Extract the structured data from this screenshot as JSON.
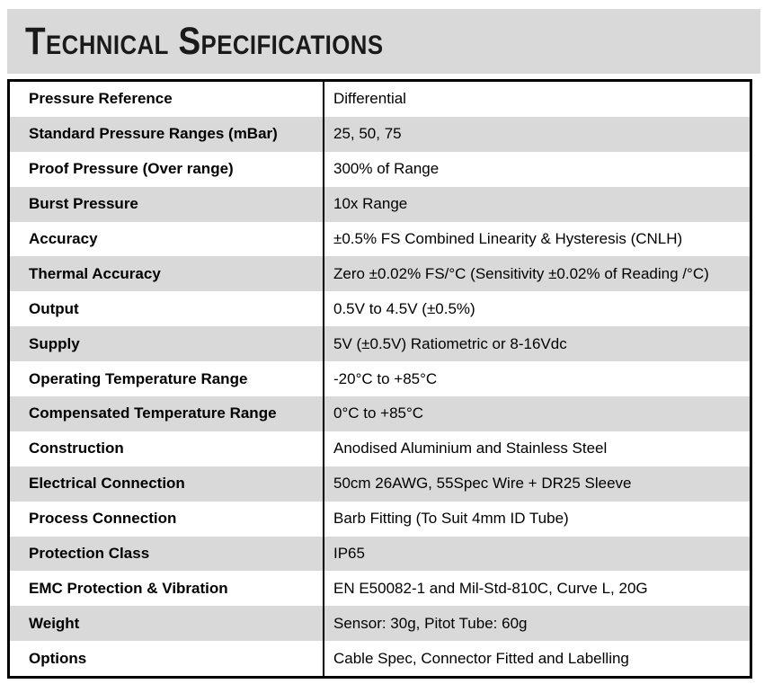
{
  "header": {
    "title": "Technical Specifications"
  },
  "colors": {
    "header_bg": "#d9d9d9",
    "row_alt_bg": "#d9d9d9",
    "border": "#000000",
    "text": "#000000"
  },
  "table": {
    "rows": [
      {
        "label": "Pressure Reference",
        "value": "Differential"
      },
      {
        "label": "Standard Pressure Ranges (mBar)",
        "value": "25, 50, 75"
      },
      {
        "label": "Proof Pressure (Over range)",
        "value": "300% of Range"
      },
      {
        "label": "Burst Pressure",
        "value": "10x Range"
      },
      {
        "label": "Accuracy",
        "value": "±0.5% FS Combined Linearity & Hysteresis (CNLH)"
      },
      {
        "label": "Thermal Accuracy",
        "value": "Zero ±0.02% FS/°C (Sensitivity ±0.02% of Reading /°C)"
      },
      {
        "label": "Output",
        "value": "0.5V to 4.5V (±0.5%)"
      },
      {
        "label": "Supply",
        "value": "5V (±0.5V) Ratiometric or 8-16Vdc"
      },
      {
        "label": "Operating Temperature Range",
        "value": "-20°C to +85°C"
      },
      {
        "label": "Compensated Temperature Range",
        "value": "0°C to +85°C"
      },
      {
        "label": "Construction",
        "value": "Anodised Aluminium and Stainless Steel"
      },
      {
        "label": "Electrical Connection",
        "value": "50cm 26AWG, 55Spec Wire + DR25 Sleeve"
      },
      {
        "label": "Process Connection",
        "value": "Barb Fitting (To Suit 4mm ID Tube)"
      },
      {
        "label": "Protection Class",
        "value": "IP65"
      },
      {
        "label": "EMC Protection & Vibration",
        "value": "EN E50082-1 and Mil-Std-810C, Curve L, 20G"
      },
      {
        "label": "Weight",
        "value": "Sensor: 30g, Pitot Tube: 60g"
      },
      {
        "label": "Options",
        "value": "Cable Spec, Connector Fitted and Labelling"
      }
    ]
  }
}
